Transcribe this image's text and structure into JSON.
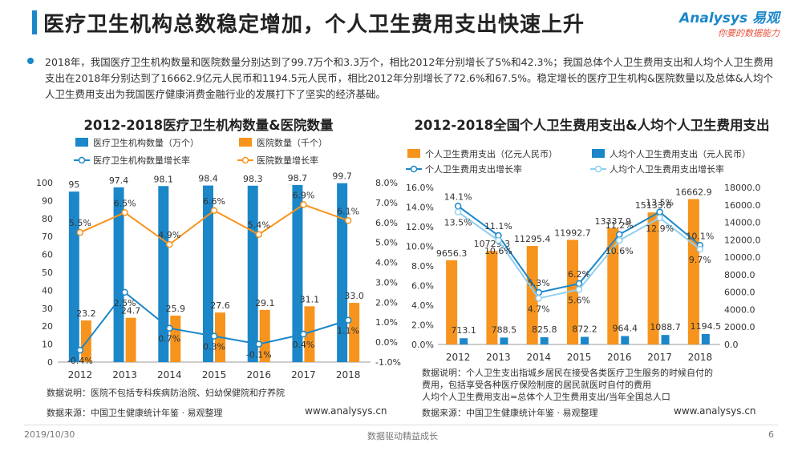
{
  "header": {
    "title": "医疗卫生机构总数稳定增加，个人卫生费用支出快速上升",
    "logo_main": "Analysys 易观",
    "logo_sub": "你要的数据能力"
  },
  "summary": "2018年，我国医疗卫生机构数量和医院数量分别达到了99.7万个和3.3万个，相比2012年分别增长了5%和42.3%；我国总体个人卫生费用支出和人均个人卫生费用支出在2018年分别达到了16662.9亿元人民币和1194.5元人民币，相比2012年分别增长了72.6%和67.5%。稳定增长的医疗卫生机构&医院数量以及总体&人均个人卫生费用支出为我国医疗健康消费金融行业的发展打下了坚实的经济基础。",
  "colors": {
    "blue": "#1b87c9",
    "orange": "#f7941d",
    "light_blue": "#8fd0f0",
    "title_bar": "#1b87c9"
  },
  "chart_data": [
    {
      "type": "bar",
      "title": "2012-2018医疗卫生机构数量&医院数量",
      "categories": [
        "2012",
        "2013",
        "2014",
        "2015",
        "2016",
        "2017",
        "2018"
      ],
      "series": [
        {
          "name": "医疗卫生机构数量（万个）",
          "kind": "bar",
          "axis": "left",
          "color": "#1b87c9",
          "values": [
            95,
            97.4,
            98.1,
            98.4,
            98.3,
            98.7,
            99.7
          ],
          "labels": [
            "95",
            "97.4",
            "98.1",
            "98.4",
            "98.3",
            "98.7",
            "99.7"
          ]
        },
        {
          "name": "医院数量（千个）",
          "kind": "bar",
          "axis": "left",
          "color": "#f7941d",
          "values": [
            23.2,
            24.7,
            25.9,
            27.6,
            29.1,
            31.1,
            33.0
          ],
          "labels": [
            "23.2",
            "24.7",
            "25.9",
            "27.6",
            "29.1",
            "31.1",
            "33.0"
          ]
        },
        {
          "name": "医疗卫生机构数量增长率",
          "kind": "line",
          "axis": "right",
          "color": "#1b87c9",
          "values": [
            -0.4,
            2.5,
            0.7,
            0.3,
            -0.1,
            0.4,
            1.1
          ],
          "labels": [
            "-0.4%",
            "2.5%",
            "0.7%",
            "0.3%",
            "-0.1%",
            "0.4%",
            "1.1%"
          ]
        },
        {
          "name": "医院数量增长率",
          "kind": "line",
          "axis": "right",
          "color": "#f7941d",
          "values": [
            5.5,
            6.5,
            4.9,
            6.6,
            5.4,
            6.9,
            6.1
          ],
          "labels": [
            "5.5%",
            "6.5%",
            "4.9%",
            "6.6%",
            "5.4%",
            "6.9%",
            "6.1%"
          ]
        }
      ],
      "y_left": {
        "min": 0,
        "max": 100,
        "ticks": [
          "0",
          "10",
          "20",
          "30",
          "40",
          "50",
          "60",
          "70",
          "80",
          "90",
          "100"
        ]
      },
      "y_right": {
        "min": -1,
        "max": 8,
        "ticks": [
          "-1.0%",
          "0.0%",
          "1.0%",
          "2.0%",
          "3.0%",
          "4.0%",
          "5.0%",
          "6.0%",
          "7.0%",
          "8.0%"
        ]
      }
    },
    {
      "type": "bar",
      "title": "2012-2018全国个人卫生费用支出&人均个人卫生费用支出",
      "categories": [
        "2012",
        "2013",
        "2014",
        "2015",
        "2016",
        "2017",
        "2018"
      ],
      "series": [
        {
          "name": "个人卫生费用支出（亿元人民币）",
          "kind": "bar",
          "axis": "right",
          "color": "#f7941d",
          "values": [
            9656.3,
            10729.3,
            11295.4,
            11992.7,
            13337.9,
            15133.6,
            16662.9
          ],
          "labels": [
            "9656.3",
            "10729.3",
            "11295.4",
            "11992.7",
            "13337.9",
            "15133.6",
            "16662.9"
          ]
        },
        {
          "name": "人均个人卫生费用支出（元人民币）",
          "kind": "bar",
          "axis": "right",
          "color": "#1b87c9",
          "values": [
            713.1,
            788.5,
            825.8,
            872.2,
            964.4,
            1088.7,
            1194.5
          ],
          "labels": [
            "713.1",
            "788.5",
            "825.8",
            "872.2",
            "964.4",
            "1088.7",
            "1194.5"
          ]
        },
        {
          "name": "个人卫生费用支出增长率",
          "kind": "line",
          "axis": "left",
          "color": "#1b87c9",
          "values": [
            14.1,
            11.1,
            5.3,
            6.2,
            11.2,
            13.5,
            10.1
          ],
          "labels": [
            "14.1%",
            "11.1%",
            "5.3%",
            "6.2%",
            "11.2%",
            "13.5%",
            "10.1%"
          ]
        },
        {
          "name": "人均个人卫生费用支出增长率",
          "kind": "line",
          "axis": "left",
          "color": "#8fd0f0",
          "values": [
            13.5,
            10.6,
            4.7,
            5.6,
            10.6,
            12.9,
            9.7
          ],
          "labels": [
            "13.5%",
            "10.6%",
            "4.7%",
            "5.6%",
            "10.6%",
            "12.9%",
            "9.7%"
          ]
        }
      ],
      "y_left": {
        "min": 0,
        "max": 16,
        "ticks": [
          "0.0%",
          "2.0%",
          "4.0%",
          "6.0%",
          "8.0%",
          "10.0%",
          "12.0%",
          "14.0%",
          "16.0%"
        ]
      },
      "y_right": {
        "min": 0,
        "max": 18000,
        "ticks": [
          "0.0",
          "2000.0",
          "4000.0",
          "6000.0",
          "8000.0",
          "10000.0",
          "12000.0",
          "14000.0",
          "16000.0",
          "18000.0"
        ]
      }
    }
  ],
  "left_note": "数据说明：医院不包括专科疾病防治院、妇幼保健院和疗养院",
  "left_source": "数据来源：中国卫生健康统计年鉴 · 易观整理",
  "left_url": "www.analysys.cn",
  "right_note_1": "数据说明：个人卫生支出指城乡居民在接受各类医疗卫生服务的时候自付的",
  "right_note_2": "费用，包括享受各种医疗保险制度的居民就医时自付的费用",
  "right_note_3": "人均个人卫生费用支出=总体个人卫生费用支出/当年全国总人口",
  "right_source": "数据来源：中国卫生健康统计年鉴 · 易观整理",
  "right_url": "www.analysys.cn",
  "footer": {
    "date": "2019/10/30",
    "slogan": "数据驱动精益成长",
    "page": "6"
  }
}
